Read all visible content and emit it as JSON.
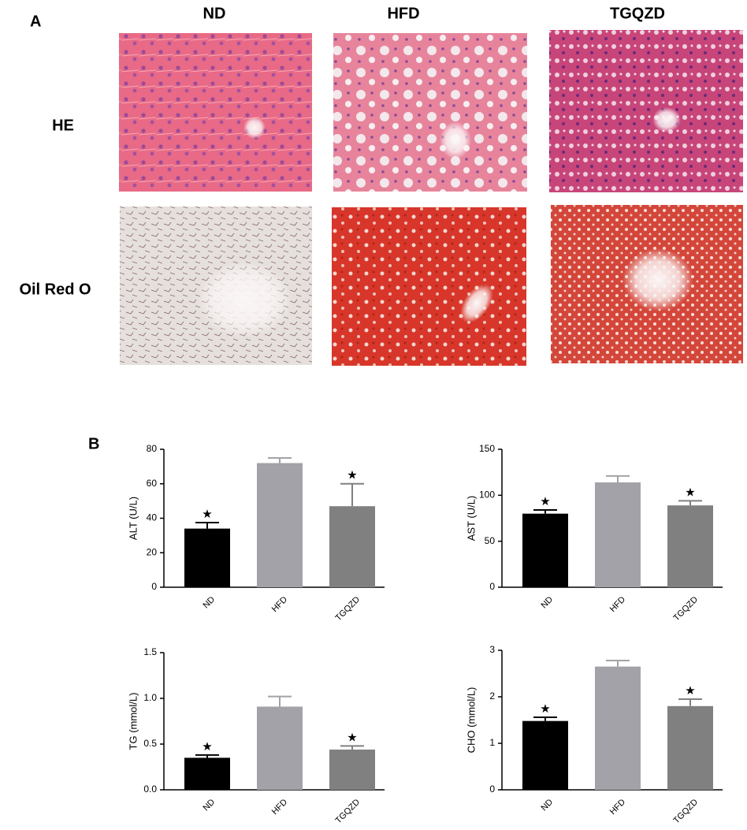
{
  "panel_labels": [
    "A",
    "B"
  ],
  "panel_a": {
    "columns": [
      "ND",
      "HFD",
      "TGQZD"
    ],
    "rows": [
      "HE",
      "Oil Red O"
    ]
  },
  "chart_data": [
    {
      "type": "bar",
      "ylabel": "ALT (U/L)",
      "categories": [
        "ND",
        "HFD",
        "TGQZD"
      ],
      "values": [
        34,
        72,
        47
      ],
      "errors": [
        3.5,
        3,
        13
      ],
      "colors": [
        "#000000",
        "#a3a2a8",
        "#808080"
      ],
      "significant": [
        true,
        false,
        true
      ],
      "marker": "★",
      "ylim": [
        0,
        80
      ],
      "yticks": [
        0,
        20,
        40,
        60,
        80
      ]
    },
    {
      "type": "bar",
      "ylabel": "AST (U/L)",
      "categories": [
        "ND",
        "HFD",
        "TGQZD"
      ],
      "values": [
        80,
        114,
        89
      ],
      "errors": [
        4,
        7,
        5
      ],
      "colors": [
        "#000000",
        "#a3a2a8",
        "#808080"
      ],
      "significant": [
        true,
        false,
        true
      ],
      "marker": "★",
      "ylim": [
        0,
        150
      ],
      "yticks": [
        0,
        50,
        100,
        150
      ]
    },
    {
      "type": "bar",
      "ylabel": "TG (mmol/L)",
      "categories": [
        "ND",
        "HFD",
        "TGQZD"
      ],
      "values": [
        0.35,
        0.91,
        0.44
      ],
      "errors": [
        0.03,
        0.11,
        0.04
      ],
      "colors": [
        "#000000",
        "#a3a2a8",
        "#808080"
      ],
      "significant": [
        true,
        false,
        true
      ],
      "marker": "★",
      "ylim": [
        0,
        1.5
      ],
      "yticks": [
        {
          "value": 0,
          "label": "0.0"
        },
        0.5,
        {
          "value": 1,
          "label": "1.0"
        },
        1.5
      ]
    },
    {
      "type": "bar",
      "ylabel": "CHO (mmol/L)",
      "categories": [
        "ND",
        "HFD",
        "TGQZD"
      ],
      "values": [
        1.48,
        2.65,
        1.8
      ],
      "errors": [
        0.08,
        0.13,
        0.15
      ],
      "colors": [
        "#000000",
        "#a3a2a8",
        "#808080"
      ],
      "significant": [
        true,
        false,
        true
      ],
      "marker": "★",
      "ylim": [
        0,
        3
      ],
      "yticks": [
        0,
        1,
        2,
        3
      ]
    }
  ]
}
